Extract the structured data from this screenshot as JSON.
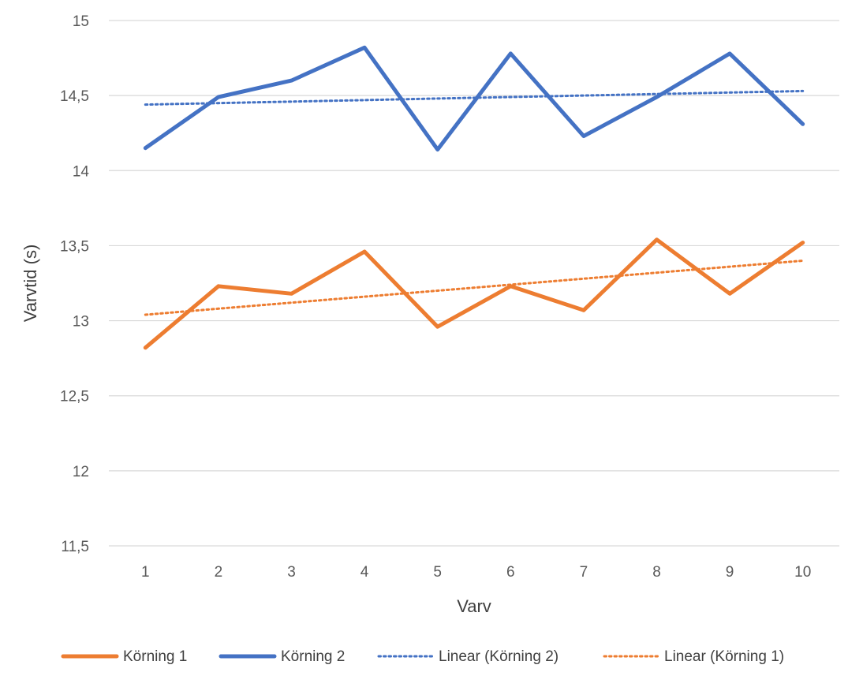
{
  "chart_data": {
    "type": "line",
    "xlabel": "Varv",
    "ylabel": "Varvtid (s)",
    "ylim": [
      11.5,
      15
    ],
    "y_step": 0.5,
    "y_tick_labels": [
      "11,5",
      "12",
      "12,5",
      "13",
      "13,5",
      "14",
      "14,5",
      "15"
    ],
    "categories": [
      "1",
      "2",
      "3",
      "4",
      "5",
      "6",
      "7",
      "8",
      "9",
      "10"
    ],
    "grid": "horizontal",
    "legend_position": "bottom",
    "series": [
      {
        "name": "Körning 1",
        "color": "#ED7D31",
        "style": "solid",
        "values": [
          12.82,
          13.23,
          13.18,
          13.46,
          12.96,
          13.23,
          13.07,
          13.54,
          13.18,
          13.52
        ]
      },
      {
        "name": "Körning 2",
        "color": "#4472C4",
        "style": "solid",
        "values": [
          14.15,
          14.49,
          14.6,
          14.82,
          14.14,
          14.78,
          14.23,
          14.49,
          14.78,
          14.31
        ]
      }
    ],
    "trendlines": [
      {
        "name": "Linear (Körning 2)",
        "color": "#4472C4",
        "style": "dotted",
        "values": [
          14.44,
          14.45,
          14.46,
          14.47,
          14.48,
          14.49,
          14.5,
          14.51,
          14.52,
          14.53
        ]
      },
      {
        "name": "Linear (Körning 1)",
        "color": "#ED7D31",
        "style": "dotted",
        "values": [
          13.04,
          13.08,
          13.12,
          13.16,
          13.2,
          13.24,
          13.28,
          13.32,
          13.36,
          13.4
        ]
      }
    ],
    "legend_order": [
      "Körning 1",
      "Körning 2",
      "Linear (Körning 2)",
      "Linear (Körning 1)"
    ]
  }
}
